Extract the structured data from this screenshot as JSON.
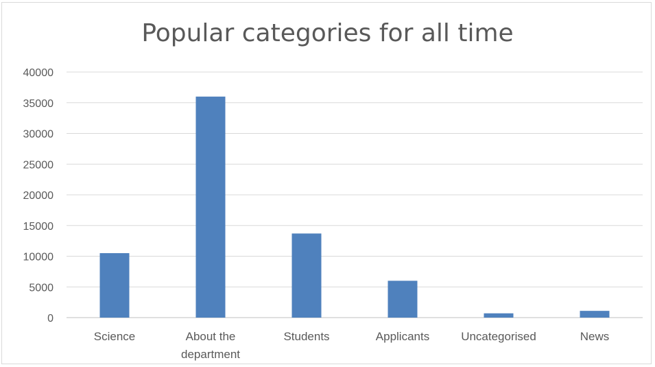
{
  "chart_data": {
    "type": "bar",
    "title": "Popular categories for all time",
    "xlabel": "",
    "ylabel": "",
    "categories": [
      "Science",
      "About the department",
      "Students",
      "Applicants",
      "Uncategorised",
      "News"
    ],
    "category_lines": [
      [
        "Science"
      ],
      [
        "About the",
        "department"
      ],
      [
        "Students"
      ],
      [
        "Applicants"
      ],
      [
        "Uncategorised"
      ],
      [
        "News"
      ]
    ],
    "values": [
      10500,
      36000,
      13700,
      6000,
      700,
      1100
    ],
    "ylim": [
      0,
      40000
    ],
    "yticks": [
      0,
      5000,
      10000,
      15000,
      20000,
      25000,
      30000,
      35000,
      40000
    ],
    "grid": true,
    "legend": "none",
    "colors": {
      "bar": "#4f81bd",
      "grid": "#d9d9d9",
      "axis": "#bfbfbf",
      "text": "#595959"
    }
  }
}
